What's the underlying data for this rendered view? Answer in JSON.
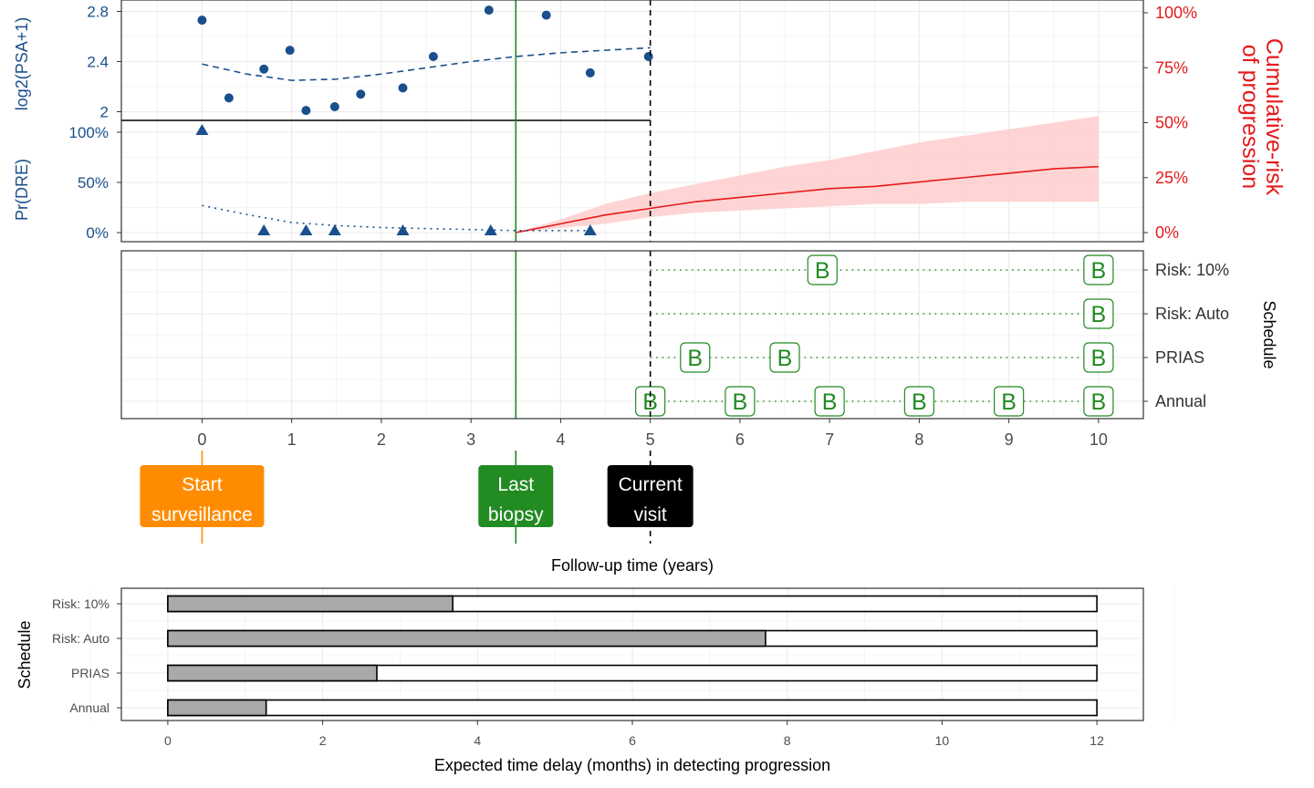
{
  "chart_data": [
    {
      "type": "scatter",
      "panel": "psa",
      "ylabel": "log2(PSA+1)",
      "yticks": [
        2,
        2.4,
        2.8
      ],
      "threshold": 1.93,
      "color": "#1a4f8b",
      "points": {
        "x": [
          0,
          0.3,
          0.69,
          0.98,
          1.16,
          1.48,
          1.77,
          2.24,
          2.58,
          3.2,
          3.84,
          4.33,
          4.98
        ],
        "y": [
          2.73,
          2.11,
          2.34,
          2.49,
          2.01,
          2.04,
          2.14,
          2.19,
          2.44,
          2.81,
          2.77,
          2.31,
          2.44
        ]
      },
      "fit": {
        "x": [
          0,
          0.5,
          1,
          1.5,
          2,
          2.5,
          3,
          3.5,
          4,
          4.5,
          5
        ],
        "y": [
          2.38,
          2.3,
          2.25,
          2.26,
          2.3,
          2.35,
          2.4,
          2.44,
          2.47,
          2.49,
          2.51
        ]
      }
    },
    {
      "type": "scatter",
      "panel": "dre",
      "ylabel": "Pr(DRE)",
      "yticks": [
        "0%",
        "50%",
        "100%"
      ],
      "color": "#1a4f8b",
      "points": {
        "x": [
          0,
          0.69,
          1.16,
          1.48,
          2.24,
          3.22,
          4.33
        ],
        "y": [
          1,
          0,
          0,
          0,
          0,
          0,
          0
        ]
      },
      "fit": {
        "x": [
          0,
          0.5,
          1,
          1.5,
          2,
          2.5,
          3,
          3.5,
          4,
          4.33
        ],
        "y": [
          0.27,
          0.18,
          0.1,
          0.07,
          0.05,
          0.04,
          0.03,
          0.02,
          0.02,
          0.02
        ]
      }
    },
    {
      "type": "area",
      "panel": "risk",
      "ylabel": "Cumulative-risk of progression",
      "ylabel_lines": [
        "Cumulative-risk",
        "of progression"
      ],
      "yticks": [
        "0%",
        "25%",
        "50%",
        "75%",
        "100%"
      ],
      "color": "#e41a1c",
      "band_color": "#ffcccc",
      "x": [
        3.5,
        4,
        4.5,
        5,
        5.5,
        6,
        6.5,
        7,
        7.5,
        8,
        8.5,
        9,
        9.5,
        10
      ],
      "y": [
        0,
        0.04,
        0.08,
        0.11,
        0.14,
        0.16,
        0.18,
        0.2,
        0.21,
        0.23,
        0.25,
        0.27,
        0.29,
        0.3
      ],
      "lower": [
        0,
        0.02,
        0.04,
        0.07,
        0.09,
        0.1,
        0.11,
        0.12,
        0.13,
        0.13,
        0.14,
        0.14,
        0.14,
        0.14
      ],
      "upper": [
        0,
        0.06,
        0.13,
        0.18,
        0.22,
        0.26,
        0.3,
        0.33,
        0.37,
        0.41,
        0.44,
        0.47,
        0.5,
        0.53
      ]
    },
    {
      "type": "scatter",
      "panel": "schedule",
      "xlabel": "Follow-up time (years)",
      "ylabel": "Schedule",
      "xlim": [
        -0.9,
        10.5
      ],
      "xticks": [
        0,
        1,
        2,
        3,
        4,
        5,
        6,
        7,
        8,
        9,
        10
      ],
      "rows": [
        "Risk: 10%",
        "Risk: Auto",
        "PRIAS",
        "Annual"
      ],
      "marker_label": "B",
      "color": "#228b22",
      "biopsies": [
        {
          "schedule": "Risk: 10%",
          "times": [
            6.92,
            10
          ]
        },
        {
          "schedule": "Risk: Auto",
          "times": [
            10
          ]
        },
        {
          "schedule": "PRIAS",
          "times": [
            5.5,
            6.5,
            10
          ]
        },
        {
          "schedule": "Annual",
          "times": [
            5,
            6,
            7,
            8,
            9,
            10
          ]
        }
      ],
      "events": [
        {
          "label": "Start surveillance",
          "lines": [
            "Start",
            "surveillance"
          ],
          "time": 0,
          "color": "#ff8c00"
        },
        {
          "label": "Last biopsy",
          "lines": [
            "Last",
            "biopsy"
          ],
          "time": 3.5,
          "color": "#228b22"
        },
        {
          "label": "Current visit",
          "lines": [
            "Current",
            "visit"
          ],
          "time": 5,
          "color": "#000000"
        }
      ]
    },
    {
      "type": "bar",
      "panel": "delay",
      "xlabel": "Expected time delay (months) in detecting progression",
      "ylabel": "Schedule",
      "categories": [
        "Risk: 10%",
        "Risk: Auto",
        "PRIAS",
        "Annual"
      ],
      "values": [
        3.68,
        7.72,
        2.7,
        1.27
      ],
      "max": 12,
      "xlim": [
        -0.6,
        12.6
      ],
      "xticks": [
        0,
        2,
        4,
        6,
        8,
        10,
        12
      ],
      "fill": "#a9a9a9"
    }
  ]
}
